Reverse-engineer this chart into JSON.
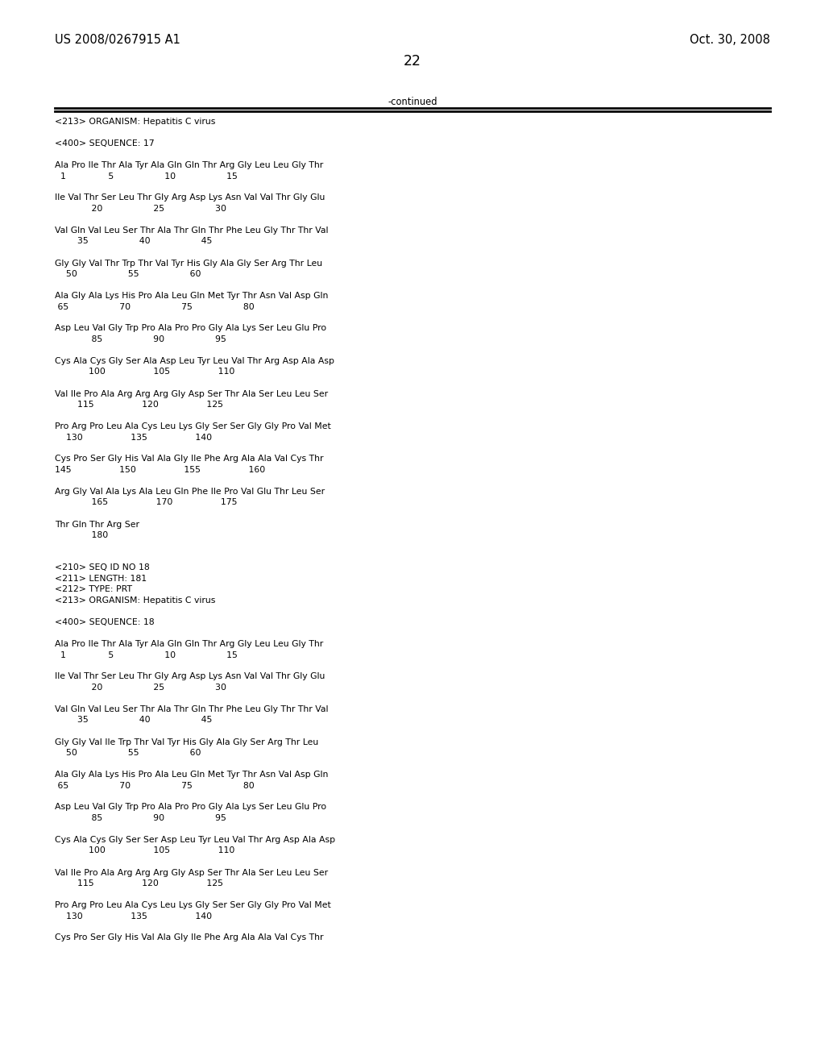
{
  "header_left": "US 2008/0267915 A1",
  "header_right": "Oct. 30, 2008",
  "page_number": "22",
  "continued_label": "-continued",
  "background_color": "#ffffff",
  "text_color": "#000000",
  "font_size_header": 10.5,
  "font_size_body": 7.8,
  "lines": [
    "<213> ORGANISM: Hepatitis C virus",
    "",
    "<400> SEQUENCE: 17",
    "",
    "Ala Pro Ile Thr Ala Tyr Ala Gln Gln Thr Arg Gly Leu Leu Gly Thr",
    "  1               5                  10                  15",
    "",
    "Ile Val Thr Ser Leu Thr Gly Arg Asp Lys Asn Val Val Thr Gly Glu",
    "             20                  25                  30",
    "",
    "Val Gln Val Leu Ser Thr Ala Thr Gln Thr Phe Leu Gly Thr Thr Val",
    "        35                  40                  45",
    "",
    "Gly Gly Val Thr Trp Thr Val Tyr His Gly Ala Gly Ser Arg Thr Leu",
    "    50                  55                  60",
    "",
    "Ala Gly Ala Lys His Pro Ala Leu Gln Met Tyr Thr Asn Val Asp Gln",
    " 65                  70                  75                  80",
    "",
    "Asp Leu Val Gly Trp Pro Ala Pro Pro Gly Ala Lys Ser Leu Glu Pro",
    "             85                  90                  95",
    "",
    "Cys Ala Cys Gly Ser Ala Asp Leu Tyr Leu Val Thr Arg Asp Ala Asp",
    "            100                 105                 110",
    "",
    "Val Ile Pro Ala Arg Arg Arg Gly Asp Ser Thr Ala Ser Leu Leu Ser",
    "        115                 120                 125",
    "",
    "Pro Arg Pro Leu Ala Cys Leu Lys Gly Ser Ser Gly Gly Pro Val Met",
    "    130                 135                 140",
    "",
    "Cys Pro Ser Gly His Val Ala Gly Ile Phe Arg Ala Ala Val Cys Thr",
    "145                 150                 155                 160",
    "",
    "Arg Gly Val Ala Lys Ala Leu Gln Phe Ile Pro Val Glu Thr Leu Ser",
    "             165                 170                 175",
    "",
    "Thr Gln Thr Arg Ser",
    "             180",
    "",
    "",
    "<210> SEQ ID NO 18",
    "<211> LENGTH: 181",
    "<212> TYPE: PRT",
    "<213> ORGANISM: Hepatitis C virus",
    "",
    "<400> SEQUENCE: 18",
    "",
    "Ala Pro Ile Thr Ala Tyr Ala Gln Gln Thr Arg Gly Leu Leu Gly Thr",
    "  1               5                  10                  15",
    "",
    "Ile Val Thr Ser Leu Thr Gly Arg Asp Lys Asn Val Val Thr Gly Glu",
    "             20                  25                  30",
    "",
    "Val Gln Val Leu Ser Thr Ala Thr Gln Thr Phe Leu Gly Thr Thr Val",
    "        35                  40                  45",
    "",
    "Gly Gly Val Ile Trp Thr Val Tyr His Gly Ala Gly Ser Arg Thr Leu",
    "    50                  55                  60",
    "",
    "Ala Gly Ala Lys His Pro Ala Leu Gln Met Tyr Thr Asn Val Asp Gln",
    " 65                  70                  75                  80",
    "",
    "Asp Leu Val Gly Trp Pro Ala Pro Pro Gly Ala Lys Ser Leu Glu Pro",
    "             85                  90                  95",
    "",
    "Cys Ala Cys Gly Ser Ser Asp Leu Tyr Leu Val Thr Arg Asp Ala Asp",
    "            100                 105                 110",
    "",
    "Val Ile Pro Ala Arg Arg Arg Gly Asp Ser Thr Ala Ser Leu Leu Ser",
    "        115                 120                 125",
    "",
    "Pro Arg Pro Leu Ala Cys Leu Lys Gly Ser Ser Gly Gly Pro Val Met",
    "    130                 135                 140",
    "",
    "Cys Pro Ser Gly His Val Ala Gly Ile Phe Arg Ala Ala Val Cys Thr"
  ]
}
